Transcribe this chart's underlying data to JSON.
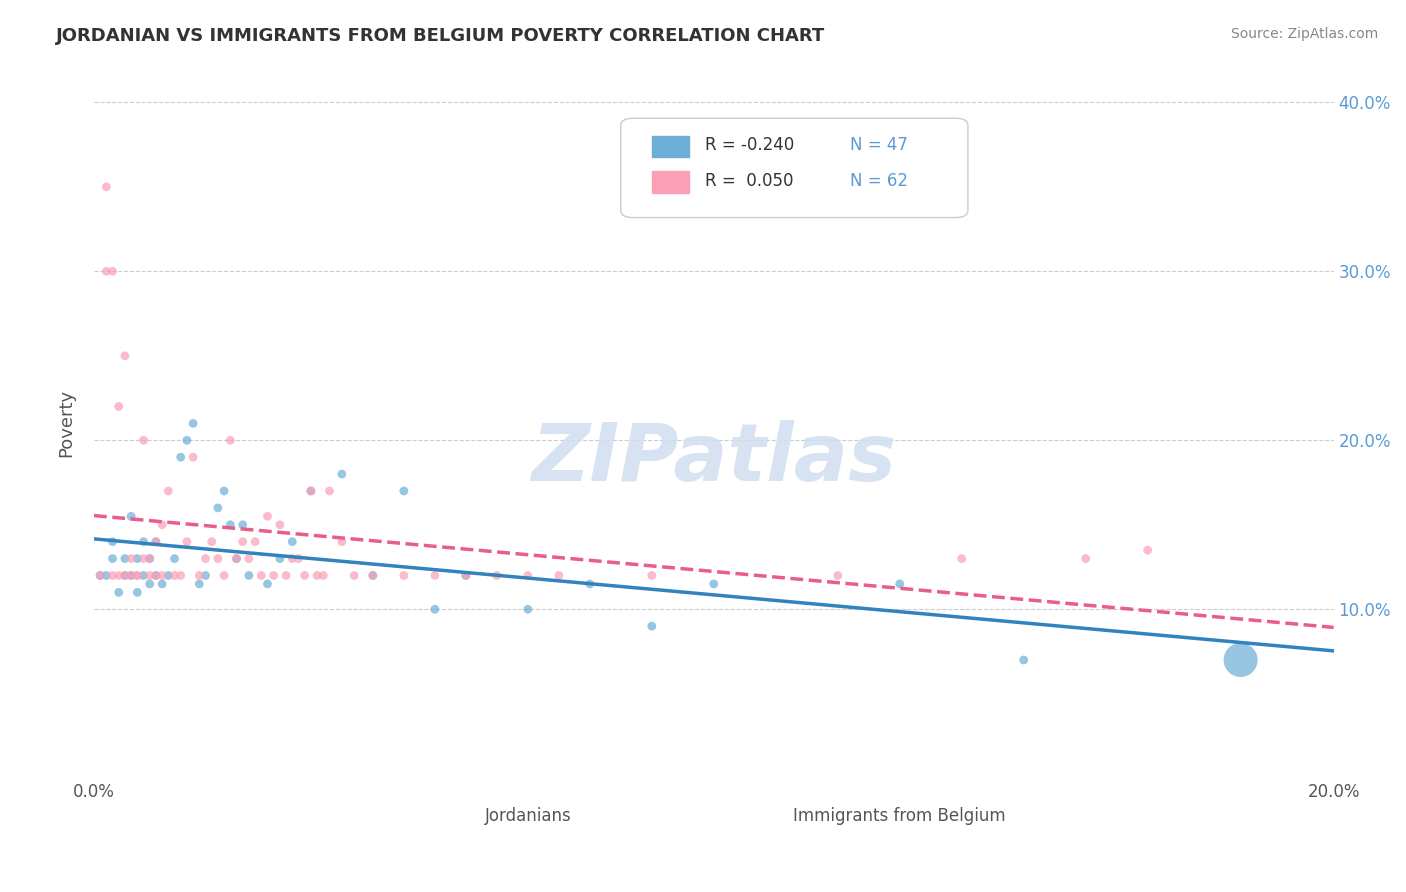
{
  "title": "JORDANIAN VS IMMIGRANTS FROM BELGIUM POVERTY CORRELATION CHART",
  "source_text": "Source: ZipAtlas.com",
  "xlabel": "",
  "ylabel": "Poverty",
  "xlim": [
    0.0,
    0.2
  ],
  "ylim": [
    0.0,
    0.42
  ],
  "xticks": [
    0.0,
    0.05,
    0.1,
    0.15,
    0.2
  ],
  "xtick_labels": [
    "0.0%",
    "",
    "",
    "",
    "20.0%"
  ],
  "ytick_positions_right": [
    0.1,
    0.2,
    0.3,
    0.4
  ],
  "ytick_labels_right": [
    "10.0%",
    "20.0%",
    "30.0%",
    "40.0%"
  ],
  "background_color": "#ffffff",
  "grid_color": "#cccccc",
  "watermark": "ZIPatlas",
  "watermark_color": "#d0dff0",
  "legend_r1": "R = -0.240",
  "legend_n1": "N = 47",
  "legend_r2": "R =  0.050",
  "legend_n2": "N = 62",
  "color_blue": "#6baed6",
  "color_pink": "#fa9fb5",
  "color_blue_line": "#3182bd",
  "color_pink_line": "#e85d8a",
  "jordanians": {
    "x": [
      0.001,
      0.002,
      0.003,
      0.003,
      0.004,
      0.005,
      0.005,
      0.006,
      0.006,
      0.007,
      0.007,
      0.008,
      0.008,
      0.009,
      0.009,
      0.01,
      0.01,
      0.011,
      0.012,
      0.013,
      0.014,
      0.015,
      0.016,
      0.017,
      0.018,
      0.02,
      0.021,
      0.022,
      0.023,
      0.024,
      0.025,
      0.028,
      0.03,
      0.032,
      0.035,
      0.04,
      0.045,
      0.05,
      0.055,
      0.06,
      0.07,
      0.08,
      0.09,
      0.1,
      0.13,
      0.15,
      0.185
    ],
    "y": [
      0.12,
      0.12,
      0.13,
      0.14,
      0.11,
      0.12,
      0.13,
      0.12,
      0.155,
      0.11,
      0.13,
      0.12,
      0.14,
      0.115,
      0.13,
      0.12,
      0.14,
      0.115,
      0.12,
      0.13,
      0.19,
      0.2,
      0.21,
      0.115,
      0.12,
      0.16,
      0.17,
      0.15,
      0.13,
      0.15,
      0.12,
      0.115,
      0.13,
      0.14,
      0.17,
      0.18,
      0.12,
      0.17,
      0.1,
      0.12,
      0.1,
      0.115,
      0.09,
      0.115,
      0.115,
      0.07,
      0.07
    ],
    "sizes": [
      40,
      40,
      40,
      40,
      40,
      40,
      40,
      40,
      40,
      40,
      40,
      40,
      40,
      40,
      40,
      40,
      40,
      40,
      40,
      40,
      40,
      40,
      40,
      40,
      40,
      40,
      40,
      40,
      40,
      40,
      40,
      40,
      40,
      40,
      40,
      40,
      40,
      40,
      40,
      40,
      40,
      40,
      40,
      40,
      40,
      40,
      600
    ]
  },
  "belgians": {
    "x": [
      0.001,
      0.002,
      0.002,
      0.003,
      0.003,
      0.004,
      0.004,
      0.005,
      0.005,
      0.006,
      0.006,
      0.007,
      0.007,
      0.008,
      0.008,
      0.009,
      0.009,
      0.01,
      0.01,
      0.011,
      0.011,
      0.012,
      0.013,
      0.014,
      0.015,
      0.016,
      0.017,
      0.018,
      0.019,
      0.02,
      0.021,
      0.022,
      0.023,
      0.024,
      0.025,
      0.026,
      0.027,
      0.028,
      0.029,
      0.03,
      0.031,
      0.032,
      0.033,
      0.034,
      0.035,
      0.036,
      0.037,
      0.038,
      0.04,
      0.042,
      0.045,
      0.05,
      0.055,
      0.06,
      0.065,
      0.07,
      0.075,
      0.09,
      0.12,
      0.14,
      0.16,
      0.17
    ],
    "y": [
      0.12,
      0.35,
      0.3,
      0.12,
      0.3,
      0.22,
      0.12,
      0.12,
      0.25,
      0.12,
      0.13,
      0.12,
      0.12,
      0.2,
      0.13,
      0.12,
      0.13,
      0.12,
      0.14,
      0.12,
      0.15,
      0.17,
      0.12,
      0.12,
      0.14,
      0.19,
      0.12,
      0.13,
      0.14,
      0.13,
      0.12,
      0.2,
      0.13,
      0.14,
      0.13,
      0.14,
      0.12,
      0.155,
      0.12,
      0.15,
      0.12,
      0.13,
      0.13,
      0.12,
      0.17,
      0.12,
      0.12,
      0.17,
      0.14,
      0.12,
      0.12,
      0.12,
      0.12,
      0.12,
      0.12,
      0.12,
      0.12,
      0.12,
      0.12,
      0.13,
      0.13,
      0.135
    ],
    "sizes": [
      40,
      40,
      40,
      40,
      40,
      40,
      40,
      40,
      40,
      40,
      40,
      40,
      40,
      40,
      40,
      40,
      40,
      40,
      40,
      40,
      40,
      40,
      40,
      40,
      40,
      40,
      40,
      40,
      40,
      40,
      40,
      40,
      40,
      40,
      40,
      40,
      40,
      40,
      40,
      40,
      40,
      40,
      40,
      40,
      40,
      40,
      40,
      40,
      40,
      40,
      40,
      40,
      40,
      40,
      40,
      40,
      40,
      40,
      40,
      40,
      40,
      40
    ]
  }
}
